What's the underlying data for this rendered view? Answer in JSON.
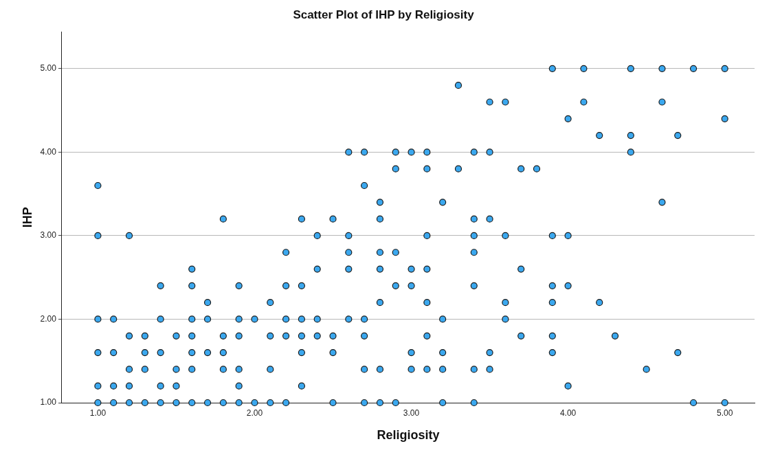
{
  "chart_data": {
    "type": "scatter",
    "title": "Scatter Plot of IHP by Religiosity",
    "xlabel": "Religiosity",
    "ylabel": "IHP",
    "x": [
      1.0,
      1.0,
      1.0,
      1.0,
      1.0,
      1.0,
      1.1,
      1.1,
      1.1,
      1.1,
      1.2,
      1.2,
      1.2,
      1.2,
      1.2,
      1.3,
      1.3,
      1.3,
      1.3,
      1.4,
      1.4,
      1.4,
      1.4,
      1.4,
      1.5,
      1.5,
      1.5,
      1.5,
      1.6,
      1.6,
      1.6,
      1.6,
      1.6,
      1.6,
      1.6,
      1.7,
      1.7,
      1.7,
      1.7,
      1.8,
      1.8,
      1.8,
      1.8,
      1.8,
      1.9,
      1.9,
      1.9,
      1.9,
      1.9,
      1.9,
      2.0,
      2.0,
      2.1,
      2.1,
      2.1,
      2.1,
      2.2,
      2.2,
      2.2,
      2.2,
      2.2,
      2.3,
      2.3,
      2.3,
      2.3,
      2.3,
      2.3,
      2.4,
      2.4,
      2.4,
      2.4,
      2.5,
      2.5,
      2.5,
      2.5,
      2.6,
      2.6,
      2.6,
      2.6,
      2.6,
      2.7,
      2.7,
      2.7,
      2.7,
      2.7,
      2.7,
      2.8,
      2.8,
      2.8,
      2.8,
      2.8,
      2.8,
      2.8,
      2.9,
      2.9,
      2.9,
      2.9,
      2.9,
      3.0,
      3.0,
      3.0,
      3.0,
      3.0,
      3.1,
      3.1,
      3.1,
      3.1,
      3.1,
      3.1,
      3.1,
      3.2,
      3.2,
      3.2,
      3.2,
      3.2,
      3.3,
      3.3,
      3.4,
      3.4,
      3.4,
      3.4,
      3.4,
      3.4,
      3.4,
      3.5,
      3.5,
      3.5,
      3.5,
      3.5,
      3.6,
      3.6,
      3.6,
      3.6,
      3.7,
      3.7,
      3.7,
      3.8,
      3.9,
      3.9,
      3.9,
      3.9,
      3.9,
      3.9,
      4.0,
      4.0,
      4.0,
      4.0,
      4.1,
      4.1,
      4.2,
      4.2,
      4.3,
      4.4,
      4.4,
      4.4,
      4.5,
      4.6,
      4.6,
      4.6,
      4.7,
      4.7,
      4.8,
      4.8,
      5.0,
      5.0,
      5.0
    ],
    "values": [
      3.6,
      3.0,
      2.0,
      1.6,
      1.2,
      1.0,
      2.0,
      1.6,
      1.2,
      1.0,
      3.0,
      1.8,
      1.4,
      1.2,
      1.0,
      1.8,
      1.6,
      1.4,
      1.0,
      2.4,
      2.0,
      1.6,
      1.2,
      1.0,
      1.8,
      1.4,
      1.2,
      1.0,
      2.6,
      2.4,
      2.0,
      1.8,
      1.6,
      1.4,
      1.0,
      2.2,
      2.0,
      1.6,
      1.0,
      3.2,
      1.8,
      1.6,
      1.4,
      1.0,
      2.4,
      2.0,
      1.8,
      1.4,
      1.2,
      1.0,
      2.0,
      1.0,
      2.2,
      1.8,
      1.4,
      1.0,
      2.8,
      2.4,
      2.0,
      1.8,
      1.0,
      3.2,
      2.4,
      2.0,
      1.8,
      1.6,
      1.2,
      3.0,
      2.6,
      2.0,
      1.8,
      3.2,
      1.8,
      1.6,
      1.0,
      4.0,
      3.0,
      2.8,
      2.6,
      2.0,
      4.0,
      3.6,
      2.0,
      1.8,
      1.4,
      1.0,
      3.4,
      3.2,
      2.8,
      2.6,
      2.2,
      1.4,
      1.0,
      4.0,
      3.8,
      2.8,
      2.4,
      1.0,
      4.0,
      2.6,
      2.4,
      1.6,
      1.4,
      4.0,
      3.8,
      3.0,
      2.6,
      2.2,
      1.8,
      1.4,
      3.4,
      2.0,
      1.6,
      1.4,
      1.0,
      4.8,
      3.8,
      4.0,
      3.2,
      3.0,
      2.8,
      2.4,
      1.4,
      1.0,
      4.6,
      4.0,
      3.2,
      1.6,
      1.4,
      4.6,
      3.0,
      2.2,
      2.0,
      3.8,
      2.6,
      1.8,
      3.8,
      5.0,
      3.0,
      2.4,
      2.2,
      1.8,
      1.6,
      4.4,
      3.0,
      2.4,
      1.2,
      5.0,
      4.6,
      4.2,
      2.2,
      1.8,
      5.0,
      4.2,
      4.0,
      1.4,
      5.0,
      4.6,
      3.4,
      4.2,
      1.6,
      5.0,
      1.0,
      5.0,
      4.4,
      1.0
    ],
    "color": "#3ba8ef",
    "marker": "circle",
    "grid": "y",
    "xlim": [
      0.77,
      5.19
    ],
    "ylim": [
      1.0,
      5.44
    ],
    "xticks": [
      {
        "value": 1,
        "label": "1.00"
      },
      {
        "value": 2,
        "label": "2.00"
      },
      {
        "value": 3,
        "label": "3.00"
      },
      {
        "value": 4,
        "label": "4.00"
      },
      {
        "value": 5,
        "label": "5.00"
      }
    ],
    "yticks": [
      {
        "value": 1,
        "label": "1.00"
      },
      {
        "value": 2,
        "label": "2.00"
      },
      {
        "value": 3,
        "label": "3.00"
      },
      {
        "value": 4,
        "label": "4.00"
      },
      {
        "value": 5,
        "label": "5.00"
      }
    ]
  }
}
